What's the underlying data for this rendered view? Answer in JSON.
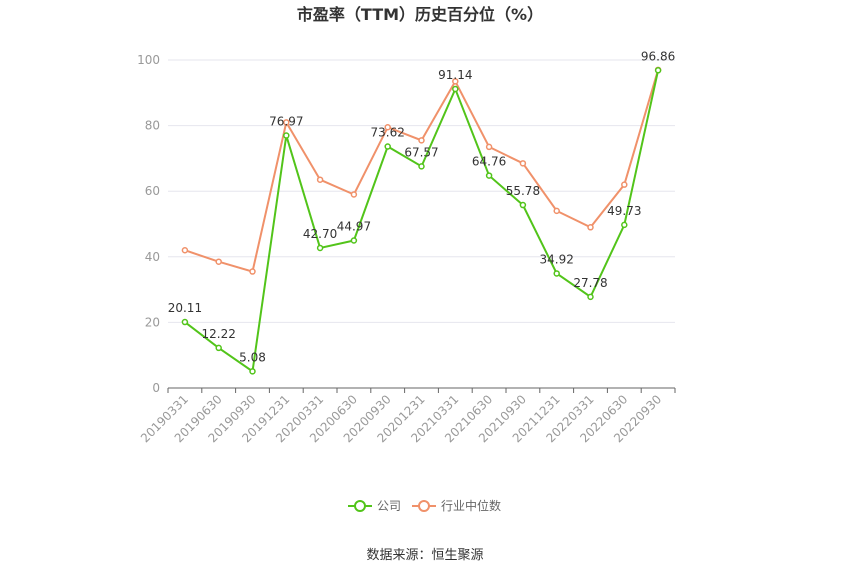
{
  "chart_data": {
    "type": "line",
    "title": "市盈率（TTM）历史百分位（%）",
    "categories": [
      "20190331",
      "20190630",
      "20190930",
      "20191231",
      "20200331",
      "20200630",
      "20200930",
      "20201231",
      "20210331",
      "20210630",
      "20210930",
      "20211231",
      "20220331",
      "20220630",
      "20220930"
    ],
    "ylim": [
      0,
      100
    ],
    "yticks": [
      0,
      20,
      40,
      60,
      80,
      100
    ],
    "grid": true,
    "legend_position": "bottom",
    "series": [
      {
        "name": "公司",
        "color": "#52c41a",
        "show_labels": true,
        "values": [
          20.11,
          12.22,
          5.08,
          76.97,
          42.7,
          44.97,
          73.62,
          67.57,
          91.14,
          64.76,
          55.78,
          34.92,
          27.78,
          49.73,
          96.86
        ],
        "labels": [
          "20.11",
          "12.22",
          "5.08",
          "76.97",
          "42.70",
          "44.97",
          "73.62",
          "67.57",
          "91.14",
          "64.76",
          "55.78",
          "34.92",
          "27.78",
          "49.73",
          "96.86"
        ]
      },
      {
        "name": "行业中位数",
        "color": "#f0916a",
        "show_labels": false,
        "values": [
          42.0,
          38.5,
          35.5,
          81.0,
          63.5,
          59.0,
          79.5,
          75.5,
          93.5,
          73.5,
          68.5,
          54.0,
          49.0,
          62.0,
          97.0
        ]
      }
    ]
  },
  "source_text": "数据来源：恒生聚源"
}
